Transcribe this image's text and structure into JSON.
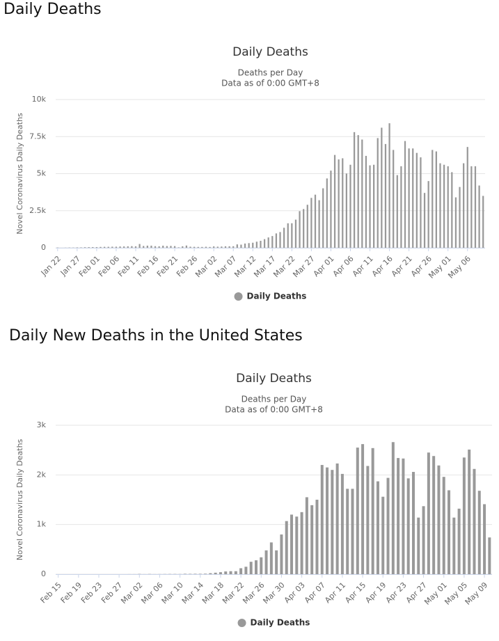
{
  "headings": [
    "Daily Deaths",
    "Daily New Deaths in the United States"
  ],
  "chart_data": [
    {
      "type": "bar",
      "title": "Daily Deaths",
      "subtitle": [
        "Deaths per Day",
        "Data as of 0:00 GMT+8"
      ],
      "y_label": "Novel Coronavirus Daily Deaths",
      "grid": true,
      "categories": [
        "Jan 22",
        null,
        null,
        null,
        null,
        "Jan 27",
        null,
        null,
        null,
        null,
        "Feb 01",
        null,
        null,
        null,
        null,
        "Feb 06",
        null,
        null,
        null,
        null,
        "Feb 11",
        null,
        null,
        null,
        null,
        "Feb 16",
        null,
        null,
        null,
        null,
        "Feb 21",
        null,
        null,
        null,
        null,
        "Feb 26",
        null,
        null,
        null,
        null,
        "Mar 02",
        null,
        null,
        null,
        null,
        "Mar 07",
        null,
        null,
        null,
        null,
        "Mar 12",
        null,
        null,
        null,
        null,
        "Mar 17",
        null,
        null,
        null,
        null,
        "Mar 22",
        null,
        null,
        null,
        null,
        "Mar 27",
        null,
        null,
        null,
        null,
        "Apr 01",
        null,
        null,
        null,
        null,
        "Apr 06",
        null,
        null,
        null,
        null,
        "Apr 11",
        null,
        null,
        null,
        null,
        "Apr 16",
        null,
        null,
        null,
        null,
        "Apr 21",
        null,
        null,
        null,
        null,
        "Apr 26",
        null,
        null,
        null,
        null,
        "May 01",
        null,
        null,
        null,
        null,
        "May 06",
        null,
        null,
        null,
        null
      ],
      "series": [
        {
          "name": "Daily Deaths",
          "color": "#999999",
          "values": [
            17,
            0,
            8,
            16,
            14,
            26,
            26,
            38,
            43,
            46,
            45,
            58,
            64,
            66,
            73,
            73,
            86,
            89,
            97,
            108,
            97,
            254,
            121,
            143,
            142,
            106,
            98,
            139,
            115,
            125,
            112,
            30,
            98,
            150,
            72,
            64,
            58,
            56,
            68,
            55,
            91,
            74,
            82,
            100,
            101,
            103,
            228,
            211,
            286,
            314,
            342,
            411,
            470,
            580,
            697,
            791,
            969,
            1061,
            1350,
            1652,
            1655,
            1897,
            2471,
            2612,
            2901,
            3365,
            3582,
            3209,
            4012,
            4677,
            5204,
            6262,
            5960,
            6037,
            5011,
            5600,
            7800,
            7600,
            7300,
            6200,
            5560,
            5600,
            7400,
            8100,
            7000,
            8400,
            6600,
            4900,
            5500,
            7200,
            6700,
            6700,
            6400,
            6100,
            3700,
            4500,
            6600,
            6500,
            5700,
            5600,
            5500,
            5100,
            3400,
            4100,
            5700,
            6800,
            5500,
            5500,
            4200,
            3500
          ]
        }
      ],
      "ylim": [
        0,
        10000
      ],
      "yticks": [
        0,
        {
          "value": 2500,
          "label": "2.5k"
        },
        {
          "value": 5000,
          "label": "5k"
        },
        {
          "value": 7500,
          "label": "7.5k"
        },
        {
          "value": 10000,
          "label": "10k"
        }
      ]
    },
    {
      "type": "bar",
      "title": "Daily Deaths",
      "subtitle": [
        "Deaths per Day",
        "Data as of 0:00 GMT+8"
      ],
      "y_label": "Novel Coronavirus Daily Deaths",
      "grid": true,
      "categories": [
        "Feb 15",
        null,
        null,
        null,
        "Feb 19",
        null,
        null,
        null,
        "Feb 23",
        null,
        null,
        null,
        "Feb 27",
        null,
        null,
        null,
        "Mar 02",
        null,
        null,
        null,
        "Mar 06",
        null,
        null,
        null,
        "Mar 10",
        null,
        null,
        null,
        "Mar 14",
        null,
        null,
        null,
        "Mar 18",
        null,
        null,
        null,
        "Mar 22",
        null,
        null,
        null,
        "Mar 26",
        null,
        null,
        null,
        "Mar 30",
        null,
        null,
        null,
        "Apr 03",
        null,
        null,
        null,
        "Apr 07",
        null,
        null,
        null,
        "Apr 11",
        null,
        null,
        null,
        "Apr 15",
        null,
        null,
        null,
        "Apr 19",
        null,
        null,
        null,
        "Apr 23",
        null,
        null,
        null,
        "Apr 27",
        null,
        null,
        null,
        "May 01",
        null,
        null,
        null,
        "May 05",
        null,
        null,
        null,
        "May 09",
        null
      ],
      "series": [
        {
          "name": "Daily Deaths",
          "color": "#999999",
          "values": [
            0,
            0,
            0,
            0,
            0,
            0,
            0,
            0,
            0,
            0,
            0,
            0,
            0,
            0,
            1,
            1,
            5,
            1,
            4,
            1,
            2,
            3,
            4,
            4,
            3,
            8,
            7,
            8,
            8,
            10,
            20,
            30,
            40,
            55,
            60,
            60,
            120,
            150,
            250,
            280,
            340,
            480,
            640,
            480,
            800,
            1070,
            1200,
            1160,
            1250,
            1550,
            1390,
            1500,
            2200,
            2150,
            2100,
            2230,
            2020,
            1720,
            1720,
            2550,
            2620,
            2180,
            2540,
            1870,
            1560,
            1940,
            2660,
            2340,
            2330,
            1930,
            2060,
            1140,
            1370,
            2450,
            2380,
            2190,
            1960,
            1690,
            1140,
            1320,
            2350,
            2510,
            2120,
            1680,
            1410,
            740
          ]
        }
      ],
      "ylim": [
        0,
        3000
      ],
      "yticks": [
        0,
        {
          "value": 1000,
          "label": "1k"
        },
        {
          "value": 2000,
          "label": "2k"
        },
        {
          "value": 3000,
          "label": "3k"
        }
      ]
    }
  ]
}
